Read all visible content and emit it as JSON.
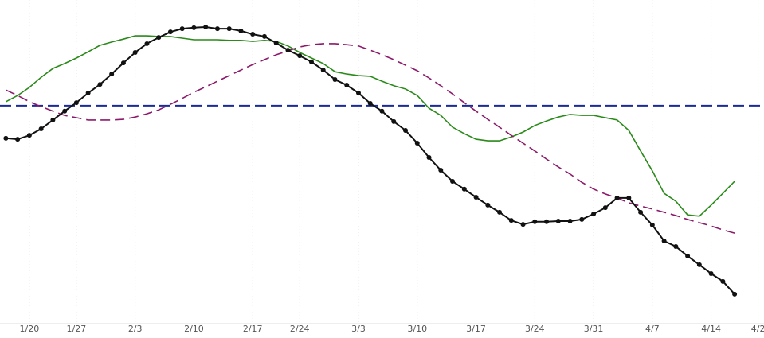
{
  "chart_data": {
    "type": "line",
    "x": [
      0,
      1,
      2,
      3,
      4,
      5,
      6,
      7,
      8,
      9,
      10,
      11,
      12,
      13,
      14,
      15,
      16,
      17,
      18,
      19,
      20,
      21,
      22,
      23,
      24,
      25,
      26,
      27,
      28,
      29,
      30,
      31,
      32,
      33,
      34,
      35,
      36,
      37,
      38,
      39,
      40,
      41,
      42,
      43,
      44,
      45,
      46,
      47,
      48,
      49,
      50,
      51,
      52,
      53,
      54,
      55,
      56,
      57,
      58,
      59,
      60,
      61,
      62
    ],
    "xlim": [
      -0.5,
      64.5
    ],
    "xticks": [
      {
        "value": 2,
        "label": "1/20"
      },
      {
        "value": 6,
        "label": "1/27"
      },
      {
        "value": 11,
        "label": "2/3"
      },
      {
        "value": 16,
        "label": "2/10"
      },
      {
        "value": 21,
        "label": "2/17"
      },
      {
        "value": 25,
        "label": "2/24"
      },
      {
        "value": 30,
        "label": "3/3"
      },
      {
        "value": 35,
        "label": "3/10"
      },
      {
        "value": 40,
        "label": "3/17"
      },
      {
        "value": 45,
        "label": "3/24"
      },
      {
        "value": 50,
        "label": "3/31"
      },
      {
        "value": 55,
        "label": "4/7"
      },
      {
        "value": 60,
        "label": "4/14"
      },
      {
        "value": 64,
        "label": "4/2"
      }
    ],
    "ylim": [
      0,
      100
    ],
    "grid": true,
    "series": [
      {
        "color": "#2a8a1a",
        "dashed": false,
        "markers": false,
        "values": [
          68.8,
          70.7,
          73.2,
          76.3,
          79.0,
          80.5,
          82.2,
          84.1,
          86.1,
          87.1,
          88.0,
          89.0,
          89.0,
          88.8,
          88.8,
          88.3,
          87.8,
          87.8,
          87.8,
          87.6,
          87.6,
          87.3,
          87.6,
          87.3,
          85.9,
          83.9,
          82.2,
          80.5,
          78.0,
          77.3,
          76.8,
          76.6,
          75.1,
          73.7,
          72.7,
          70.7,
          66.8,
          64.6,
          61.0,
          59.0,
          57.3,
          56.8,
          56.8,
          58.0,
          59.5,
          61.5,
          62.9,
          64.1,
          64.9,
          64.6,
          64.6,
          63.9,
          63.2,
          60.0,
          53.7,
          47.6,
          40.7,
          38.3,
          34.1,
          33.7,
          37.1,
          40.7,
          44.4
        ]
      },
      {
        "color": "#8b1a6b",
        "dashed": true,
        "markers": false,
        "values": [
          72.4,
          70.7,
          68.8,
          67.3,
          65.9,
          64.6,
          63.9,
          63.2,
          63.2,
          63.2,
          63.4,
          64.1,
          65.1,
          66.3,
          68.0,
          69.8,
          71.7,
          73.4,
          75.1,
          76.8,
          78.5,
          80.2,
          81.7,
          83.2,
          84.4,
          85.6,
          86.3,
          86.6,
          86.6,
          86.3,
          85.9,
          84.6,
          83.2,
          81.7,
          80.0,
          78.3,
          76.1,
          73.7,
          71.2,
          68.5,
          65.9,
          63.4,
          61.0,
          58.5,
          56.1,
          53.7,
          51.2,
          48.8,
          46.6,
          44.1,
          42.0,
          40.5,
          39.3,
          37.8,
          36.8,
          35.9,
          34.9,
          33.9,
          32.7,
          31.7,
          30.7,
          29.5,
          28.5
        ]
      },
      {
        "color": "#111111",
        "dashed": false,
        "markers": true,
        "values": [
          57.6,
          57.3,
          58.5,
          60.5,
          63.2,
          65.9,
          68.5,
          71.5,
          74.1,
          77.3,
          80.7,
          83.9,
          86.6,
          88.5,
          90.2,
          91.2,
          91.5,
          91.7,
          91.2,
          91.2,
          90.5,
          89.5,
          88.8,
          86.8,
          84.6,
          82.9,
          81.0,
          78.5,
          75.6,
          73.9,
          71.5,
          68.3,
          65.9,
          62.7,
          60.0,
          56.1,
          51.7,
          47.8,
          44.4,
          42.0,
          39.5,
          37.1,
          34.9,
          32.4,
          31.2,
          32.0,
          32.0,
          32.2,
          32.2,
          32.7,
          34.4,
          36.3,
          39.3,
          39.3,
          34.9,
          31.0,
          26.1,
          24.4,
          21.5,
          18.8,
          16.1,
          13.7,
          9.8
        ]
      }
    ],
    "hlines": [
      {
        "value": 67.6,
        "color": "#1a2a9a",
        "dashed": true
      }
    ]
  }
}
